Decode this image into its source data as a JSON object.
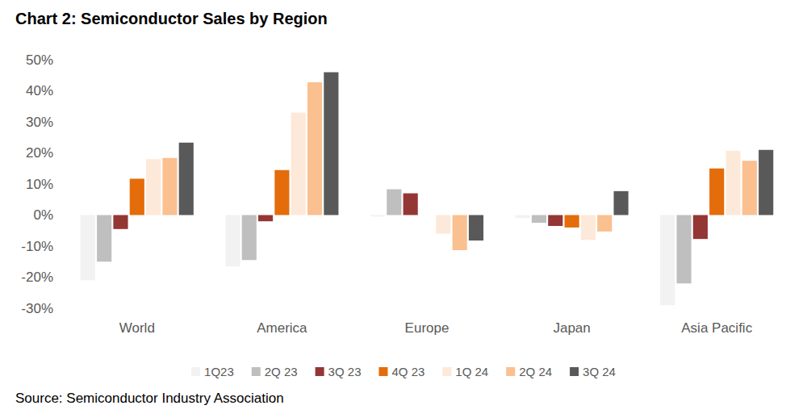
{
  "chart_data": {
    "type": "bar",
    "title": "Chart 2: Semiconductor Sales by Region",
    "source": "Source: Semiconductor Industry Association",
    "categories": [
      "World",
      "America",
      "Europe",
      "Japan",
      "Asia Pacific"
    ],
    "series": [
      {
        "name": "1Q23",
        "color": "#f2f2f2",
        "values": [
          -21,
          -16.5,
          -0.5,
          -1,
          -29
        ]
      },
      {
        "name": "2Q 23",
        "color": "#bfbfbf",
        "values": [
          -15,
          -14.5,
          8.3,
          -2.5,
          -22
        ]
      },
      {
        "name": "3Q 23",
        "color": "#943634",
        "values": [
          -4.5,
          -2,
          7,
          -3.5,
          -7.7
        ]
      },
      {
        "name": "4Q 23",
        "color": "#e46c0a",
        "values": [
          11.7,
          14.5,
          0,
          -4,
          15
        ]
      },
      {
        "name": "1Q 24",
        "color": "#fde9d9",
        "values": [
          18,
          33,
          -6,
          -8,
          20.7
        ]
      },
      {
        "name": "2Q 24",
        "color": "#fac090",
        "values": [
          18.4,
          42.7,
          -11.3,
          -5.3,
          17.5
        ]
      },
      {
        "name": "3Q 24",
        "color": "#595959",
        "values": [
          23.3,
          46,
          -8.2,
          7.7,
          21
        ]
      }
    ],
    "ylim": [
      -30,
      50
    ],
    "yticks": [
      {
        "value": -30,
        "label": "-30%"
      },
      {
        "value": -20,
        "label": "-20%"
      },
      {
        "value": -10,
        "label": "-10%"
      },
      {
        "value": 0,
        "label": "0%"
      },
      {
        "value": 10,
        "label": "10%"
      },
      {
        "value": 20,
        "label": "20%"
      },
      {
        "value": 30,
        "label": "30%"
      },
      {
        "value": 40,
        "label": "40%"
      },
      {
        "value": 50,
        "label": "50%"
      }
    ],
    "grid": false,
    "legend": "bottom"
  }
}
